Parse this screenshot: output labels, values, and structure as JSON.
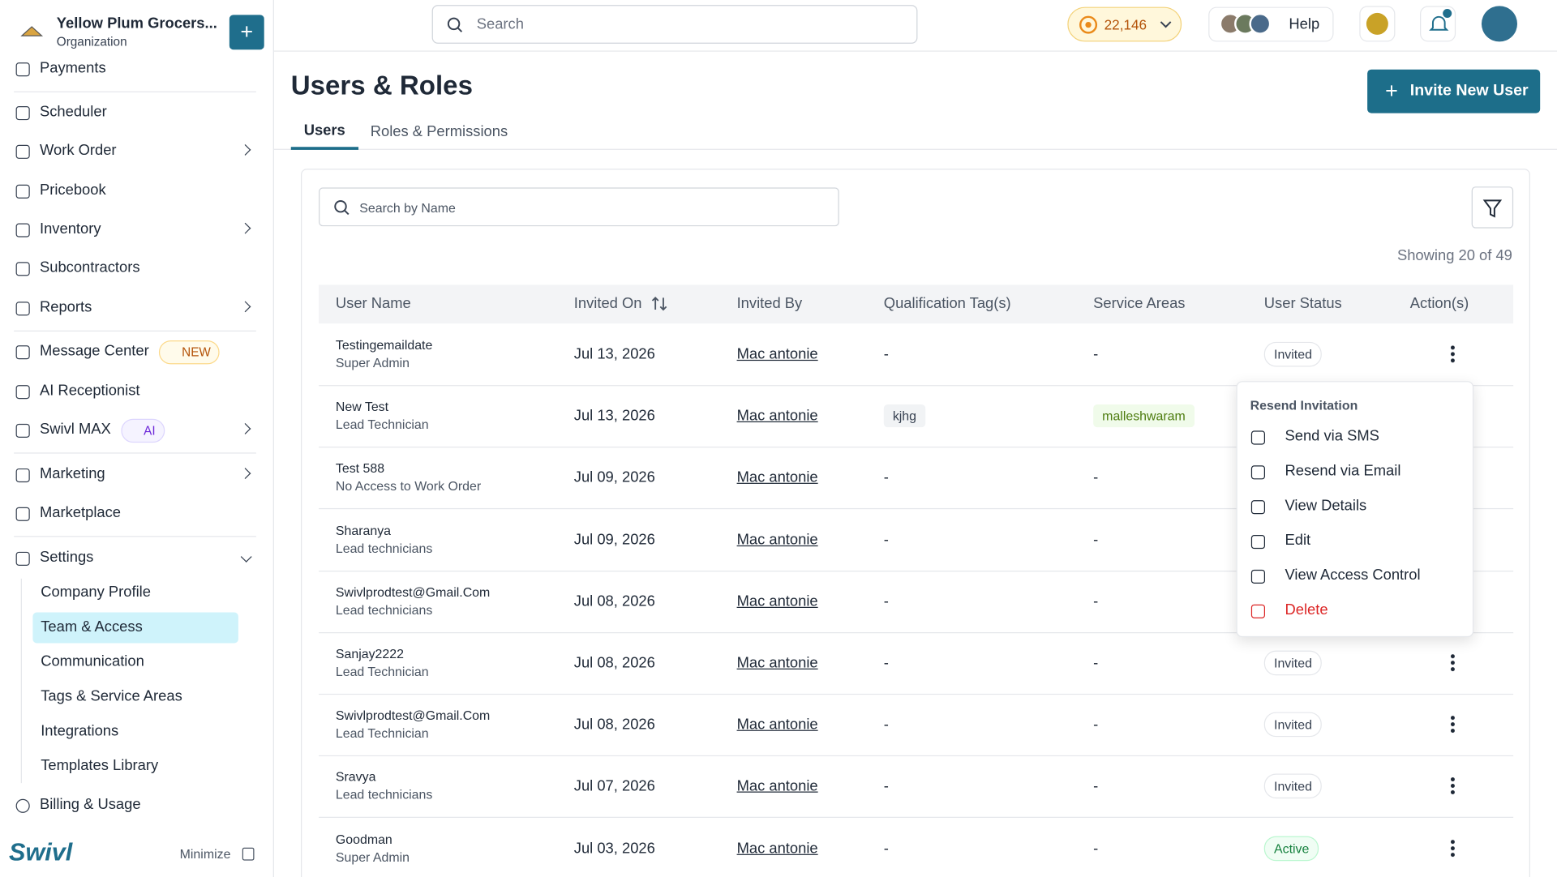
{
  "org": {
    "name": "Yellow Plum Grocers...",
    "subtitle": "Organization"
  },
  "topbar": {
    "search_placeholder": "Search",
    "credits": "22,146",
    "help": "Help"
  },
  "sidebar": {
    "items": [
      {
        "label": "Payments",
        "chevron": false
      },
      {
        "label": "Scheduler",
        "chevron": false
      },
      {
        "label": "Work Order",
        "chevron": true
      },
      {
        "label": "Pricebook",
        "chevron": false
      },
      {
        "label": "Inventory",
        "chevron": true
      },
      {
        "label": "Subcontractors",
        "chevron": false
      },
      {
        "label": "Reports",
        "chevron": true
      },
      {
        "label": "Message Center",
        "chevron": false,
        "badge": "NEW"
      },
      {
        "label": "AI Receptionist",
        "chevron": false
      },
      {
        "label": "Swivl MAX",
        "chevron": true,
        "badge": "AI"
      },
      {
        "label": "Marketing",
        "chevron": true
      },
      {
        "label": "Marketplace",
        "chevron": false
      }
    ],
    "settings": "Settings",
    "settings_items": [
      "Company Profile",
      "Team & Access",
      "Communication",
      "Tags & Service Areas",
      "Integrations",
      "Templates Library"
    ],
    "billing": "Billing & Usage",
    "logo": "Swivl",
    "minimize": "Minimize"
  },
  "page": {
    "title": "Users & Roles",
    "invite_button": "Invite New User",
    "tabs": [
      "Users",
      "Roles & Permissions"
    ],
    "search_placeholder": "Search by Name",
    "showing": "Showing 20 of 49"
  },
  "table": {
    "columns": [
      "User Name",
      "Invited On",
      "Invited By",
      "Qualification Tag(s)",
      "Service Areas",
      "User Status",
      "Action(s)"
    ],
    "rows": [
      {
        "name": "Testingemaildate",
        "role": "Super Admin",
        "invited_on": "Jul 13, 2026",
        "invited_by": "Mac antonie",
        "tags": "-",
        "areas": "-",
        "status": "Invited"
      },
      {
        "name": "New Test",
        "role": "Lead Technician",
        "invited_on": "Jul 13, 2026",
        "invited_by": "Mac antonie",
        "tags": "kjhg",
        "areas": "malleshwaram",
        "status": null
      },
      {
        "name": "Test 588",
        "role": "No Access to Work Order",
        "invited_on": "Jul 09, 2026",
        "invited_by": "Mac antonie",
        "tags": "-",
        "areas": "-",
        "status": null
      },
      {
        "name": "Sharanya",
        "role": "Lead technicians",
        "invited_on": "Jul 09, 2026",
        "invited_by": "Mac antonie",
        "tags": "-",
        "areas": "-",
        "status": null
      },
      {
        "name": "Swivlprodtest@Gmail.Com",
        "role": "Lead technicians",
        "invited_on": "Jul 08, 2026",
        "invited_by": "Mac antonie",
        "tags": "-",
        "areas": "-",
        "status": null
      },
      {
        "name": "Sanjay2222",
        "role": "Lead Technician",
        "invited_on": "Jul 08, 2026",
        "invited_by": "Mac antonie",
        "tags": "-",
        "areas": "-",
        "status": "Invited"
      },
      {
        "name": "Swivlprodtest@Gmail.Com",
        "role": "Lead Technician",
        "invited_on": "Jul 08, 2026",
        "invited_by": "Mac antonie",
        "tags": "-",
        "areas": "-",
        "status": "Invited"
      },
      {
        "name": "Sravya",
        "role": "Lead technicians",
        "invited_on": "Jul 07, 2026",
        "invited_by": "Mac antonie",
        "tags": "-",
        "areas": "-",
        "status": "Invited"
      },
      {
        "name": "Goodman",
        "role": "Super Admin",
        "invited_on": "Jul 03, 2026",
        "invited_by": "Mac antonie",
        "tags": "-",
        "areas": "-",
        "status": "Active"
      }
    ]
  },
  "menu": {
    "heading": "Resend Invitation",
    "items": [
      "Send via SMS",
      "Resend via Email",
      "View Details",
      "Edit",
      "View Access Control",
      "Delete"
    ]
  }
}
